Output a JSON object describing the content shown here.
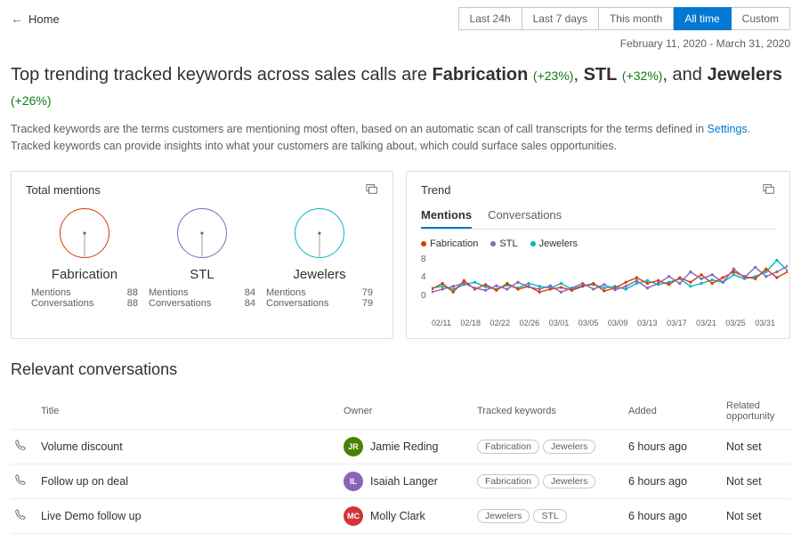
{
  "nav": {
    "back_label": "Home"
  },
  "time_filters": [
    "Last 24h",
    "Last 7 days",
    "This month",
    "All time",
    "Custom"
  ],
  "time_filters_active_index": 3,
  "date_range": "February 11, 2020 - March 31, 2020",
  "headline": {
    "prefix": "Top trending tracked keywords across sales calls are ",
    "kw1": "Fabrication",
    "pct1": "(+23%)",
    "kw2": "STL",
    "pct2": "(+32%)",
    "kw3": "Jewelers",
    "pct3": "(+26%)"
  },
  "description": {
    "line1a": "Tracked keywords are the terms customers are mentioning most often, based on an automatic scan of call transcripts for the terms defined in ",
    "settings_link": "Settings",
    "line1b": ".",
    "line2": "Tracked keywords can provide insights into what your customers are talking about, which could surface sales opportunities."
  },
  "mentions_card": {
    "title": "Total mentions",
    "items": [
      {
        "name": "Fabrication",
        "color": "#d83b01",
        "mentions_label": "Mentions",
        "mentions": "88",
        "conv_label": "Conversations",
        "conv": "88"
      },
      {
        "name": "STL",
        "color": "#8764b8",
        "mentions_label": "Mentions",
        "mentions": "84",
        "conv_label": "Conversations",
        "conv": "84"
      },
      {
        "name": "Jewelers",
        "color": "#00b7c3",
        "mentions_label": "Mentions",
        "mentions": "79",
        "conv_label": "Conversations",
        "conv": "79"
      }
    ]
  },
  "trend_card": {
    "title": "Trend",
    "tabs": [
      "Mentions",
      "Conversations"
    ],
    "active_tab": 0,
    "legend": [
      {
        "label": "Fabrication",
        "color": "#d83b01"
      },
      {
        "label": "STL",
        "color": "#8764b8"
      },
      {
        "label": "Jewelers",
        "color": "#00b7c3"
      }
    ],
    "y_ticks": [
      "8",
      "4",
      "0"
    ],
    "x_ticks": [
      "02/11",
      "02/18",
      "02/22",
      "02/26",
      "03/01",
      "03/05",
      "03/09",
      "03/13",
      "03/17",
      "03/21",
      "03/25",
      "03/31"
    ],
    "ylim": [
      0,
      8
    ],
    "series": {
      "fabrication": [
        2,
        3,
        1.5,
        3.5,
        2,
        2.8,
        1.8,
        3,
        2,
        2.5,
        1.5,
        2,
        2.3,
        1.8,
        2.5,
        3,
        1.7,
        2.2,
        3.2,
        4,
        3,
        3.5,
        2.8,
        4,
        3.2,
        4.5,
        3,
        4,
        5,
        4.2,
        3.8,
        5.5,
        4,
        5
      ],
      "stl": [
        1.5,
        2,
        2.5,
        3,
        2.2,
        1.8,
        2.6,
        2,
        3.2,
        2.4,
        2,
        2.6,
        1.5,
        2.2,
        3,
        2,
        2.8,
        1.9,
        2.5,
        3.5,
        2.2,
        3,
        4.2,
        3,
        5,
        3.8,
        4.5,
        3.2,
        5.5,
        4,
        5.8,
        4.2,
        5,
        6
      ],
      "jewelers": [
        2.2,
        2.5,
        2,
        2.8,
        3.2,
        2.4,
        2,
        2.7,
        2.2,
        3,
        2.5,
        2.2,
        3,
        2,
        2.6,
        2.8,
        2.2,
        2.5,
        2,
        3,
        3.5,
        2.8,
        3.2,
        3.8,
        2.5,
        3,
        3.6,
        3.2,
        4.5,
        3.8,
        4.2,
        5,
        7,
        5.2
      ]
    }
  },
  "conversations": {
    "heading": "Relevant conversations",
    "columns": {
      "title": "Title",
      "owner": "Owner",
      "kw": "Tracked keywords",
      "added": "Added",
      "opp": "Related opportunity"
    },
    "rows": [
      {
        "title": "Volume discount",
        "owner": "Jamie Reding",
        "initials": "JR",
        "avatar_color": "#498205",
        "keywords": [
          "Fabrication",
          "Jewelers"
        ],
        "added": "6 hours ago",
        "opp": "Not set"
      },
      {
        "title": "Follow up on deal",
        "owner": "Isaiah Langer",
        "initials": "IL",
        "avatar_color": "#8764b8",
        "keywords": [
          "Fabrication",
          "Jewelers"
        ],
        "added": "6 hours ago",
        "opp": "Not set"
      },
      {
        "title": "Live Demo follow up",
        "owner": "Molly Clark",
        "initials": "MC",
        "avatar_color": "#d13438",
        "keywords": [
          "Jewelers",
          "STL"
        ],
        "added": "6 hours ago",
        "opp": "Not set"
      }
    ]
  }
}
